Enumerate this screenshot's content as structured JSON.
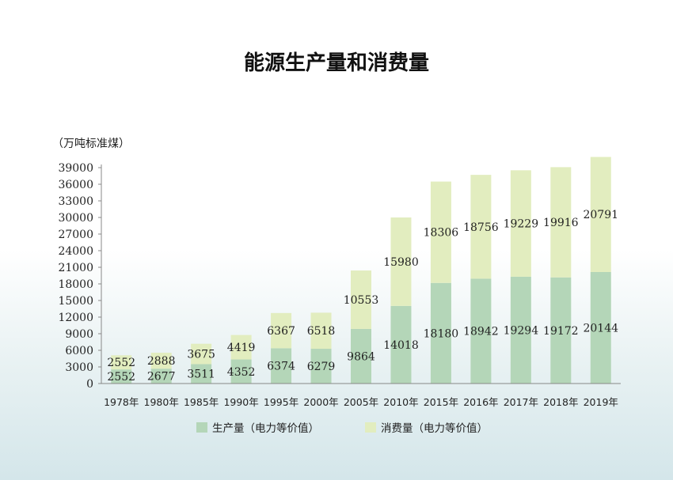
{
  "chart_data": {
    "type": "bar",
    "stacked": true,
    "title": "能源生产量和消费量",
    "unit_label": "（万吨标准煤）",
    "categories": [
      "1978年",
      "1980年",
      "1985年",
      "1990年",
      "1995年",
      "2000年",
      "2005年",
      "2010年",
      "2015年",
      "2016年",
      "2017年",
      "2018年",
      "2019年"
    ],
    "series": [
      {
        "name": "生产量（电力等价值）",
        "color": "#b4d6b8",
        "values": [
          2552,
          2677,
          3511,
          4352,
          6374,
          6279,
          9864,
          14018,
          18180,
          18942,
          19294,
          19172,
          20144
        ]
      },
      {
        "name": "消费量（电力等价值）",
        "color": "#e2edbf",
        "values": [
          2552,
          2888,
          3675,
          4419,
          6367,
          6518,
          10553,
          15980,
          18306,
          18756,
          19229,
          19916,
          20791
        ]
      }
    ],
    "yticks": [
      0,
      3000,
      6000,
      9000,
      12000,
      15000,
      18000,
      21000,
      24000,
      27000,
      30000,
      33000,
      36000,
      39000
    ],
    "ylim": [
      0,
      39000
    ],
    "grid": false,
    "legend_position": "bottom"
  }
}
